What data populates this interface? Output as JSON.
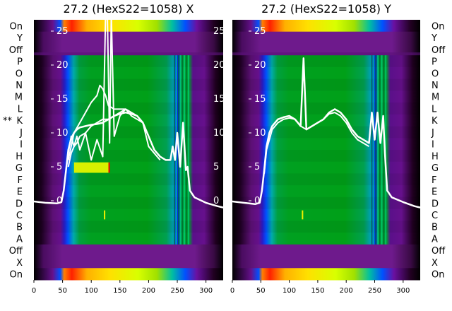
{
  "chart_data": [
    {
      "type": "heatmap",
      "title": "27.2 (HexS22=1058) X",
      "row_labels": [
        "On",
        "Y",
        "Off",
        "P",
        "O",
        "N",
        "M",
        "L",
        "K",
        "J",
        "I",
        "H",
        "G",
        "F",
        "E",
        "D",
        "C",
        "B",
        "A",
        "Off",
        "X",
        "On"
      ],
      "marked_row": "K",
      "marker": "**",
      "x_ticks": [
        0,
        50,
        100,
        150,
        200,
        250,
        300
      ],
      "xlim": [
        0,
        330
      ],
      "y_overlay_ticks": [
        0,
        5,
        10,
        15,
        20,
        25
      ],
      "ylim": [
        0,
        27
      ],
      "series": [
        {
          "x": [
            0,
            20,
            40,
            48,
            52,
            56,
            60,
            65,
            70,
            75,
            80,
            90,
            100,
            110,
            120,
            130,
            140,
            150,
            160,
            170,
            180,
            190,
            200,
            210,
            220,
            230,
            238,
            242,
            246,
            250,
            255,
            260,
            265,
            268,
            272,
            280,
            300,
            320,
            330
          ],
          "y": [
            -0.1,
            -0.3,
            -0.4,
            -0.2,
            1.5,
            4.5,
            7.5,
            9.2,
            10.0,
            10.5,
            10.8,
            11.0,
            11.2,
            11.3,
            11.5,
            12.0,
            12.5,
            12.8,
            13.0,
            12.8,
            12.5,
            11.5,
            9.5,
            7.5,
            6.5,
            6.0,
            6.0,
            8.0,
            6.0,
            10.0,
            5.0,
            11.5,
            4.5,
            5.0,
            1.5,
            0.5,
            -0.3,
            -0.8,
            -1.0
          ]
        },
        {
          "x": [
            56,
            60,
            65,
            70,
            75,
            80,
            90,
            100,
            110,
            120,
            125,
            128,
            132,
            135,
            140,
            150,
            160,
            170,
            180,
            190,
            200,
            210,
            220,
            230
          ],
          "y": [
            4.5,
            7.0,
            9.5,
            8.0,
            9.5,
            7.5,
            10.0,
            6.0,
            9.0,
            6.5,
            28.0,
            28.0,
            8.5,
            28.0,
            9.5,
            12.5,
            13.5,
            12.5,
            12.0,
            11.5,
            9.5,
            7.5,
            6.5,
            6.0
          ]
        },
        {
          "x": [
            60,
            65,
            70,
            75,
            80,
            90,
            100,
            110,
            120,
            130,
            140,
            150,
            160,
            170,
            180,
            190,
            200,
            210,
            220
          ],
          "y": [
            5.0,
            7.0,
            8.0,
            8.5,
            9.5,
            10.0,
            11.0,
            11.5,
            12.0,
            12.0,
            12.5,
            13.0,
            13.5,
            13.0,
            12.5,
            11.5,
            8.0,
            7.0,
            6.0
          ]
        },
        {
          "x": [
            60,
            65,
            70,
            80,
            90,
            100,
            110,
            115,
            120,
            125,
            130,
            140,
            150,
            160,
            170,
            180,
            190,
            200,
            210
          ],
          "y": [
            6.0,
            8.0,
            10.0,
            11.5,
            13.0,
            14.5,
            15.5,
            17.0,
            16.5,
            15.5,
            14.0,
            13.5,
            13.5,
            13.5,
            13.0,
            12.5,
            11.5,
            9.5,
            7.5
          ]
        }
      ]
    },
    {
      "type": "heatmap",
      "title": "27.2 (HexS22=1058) Y",
      "row_labels": [
        "On",
        "Y",
        "Off",
        "P",
        "O",
        "N",
        "M",
        "L",
        "K",
        "J",
        "I",
        "H",
        "G",
        "F",
        "E",
        "D",
        "C",
        "B",
        "A",
        "Off",
        "X",
        "On"
      ],
      "x_ticks": [
        0,
        50,
        100,
        150,
        200,
        250,
        300
      ],
      "xlim": [
        0,
        330
      ],
      "y_overlay_ticks": [
        0,
        5,
        10,
        15,
        20,
        25
      ],
      "ylim": [
        0,
        27
      ],
      "series": [
        {
          "x": [
            0,
            20,
            40,
            48,
            52,
            56,
            60,
            65,
            70,
            75,
            80,
            90,
            100,
            110,
            115,
            120,
            125,
            130,
            140,
            150,
            160,
            170,
            180,
            190,
            200,
            210,
            220,
            230,
            240,
            245,
            250,
            255,
            260,
            265,
            268,
            272,
            280,
            300,
            320,
            330
          ],
          "y": [
            -0.1,
            -0.3,
            -0.5,
            -0.3,
            1.5,
            4.5,
            8.0,
            10.0,
            11.0,
            11.5,
            12.0,
            12.3,
            12.5,
            12.0,
            11.5,
            11.0,
            21.0,
            10.5,
            11.0,
            11.5,
            12.0,
            13.0,
            13.5,
            13.0,
            12.0,
            10.5,
            9.5,
            9.0,
            8.5,
            13.0,
            9.0,
            13.0,
            8.5,
            12.5,
            7.0,
            1.5,
            0.5,
            -0.2,
            -0.8,
            -1.0
          ]
        },
        {
          "x": [
            56,
            60,
            70,
            80,
            90,
            100,
            110,
            120,
            130,
            140,
            150,
            160,
            170,
            180,
            190,
            200,
            210,
            220,
            230,
            240
          ],
          "y": [
            4.0,
            7.5,
            10.5,
            11.5,
            12.0,
            12.2,
            12.0,
            11.0,
            10.5,
            11.0,
            11.5,
            12.0,
            12.8,
            13.0,
            12.5,
            11.5,
            10.0,
            9.0,
            8.5,
            8.0
          ]
        }
      ]
    }
  ]
}
